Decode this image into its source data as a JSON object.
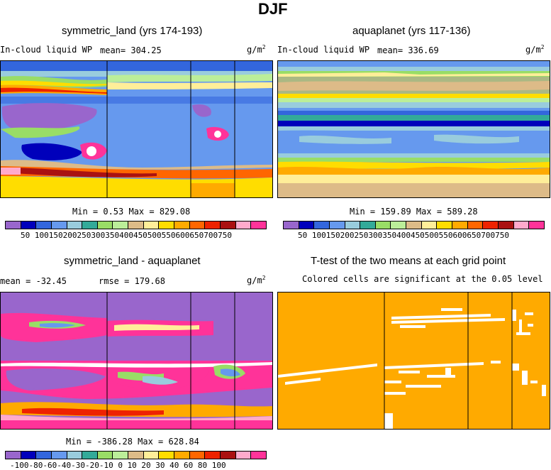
{
  "figure_title": "DJF",
  "colors": {
    "abs_levels": [
      "#9966cc",
      "#0000bb",
      "#3366dd",
      "#6699ee",
      "#99ccdd",
      "#33aa99",
      "#99dd66",
      "#bbee99",
      "#ddbb88",
      "#ffee99",
      "#ffdd00",
      "#ffaa00",
      "#ff6600",
      "#ee2200",
      "#aa1111",
      "#ffaacc",
      "#ff3399"
    ],
    "diff_levels": [
      "#9966cc",
      "#0000bb",
      "#3366dd",
      "#6699ee",
      "#99ccdd",
      "#33aa99",
      "#99dd66",
      "#bbee99",
      "#ddbb88",
      "#ffee99",
      "#ffdd00",
      "#ffaa00",
      "#ff6600",
      "#ee2200",
      "#aa1111",
      "#ffaacc",
      "#ff3399"
    ],
    "significant": "#ffaa00",
    "not_significant": "#ffffff"
  },
  "panels": {
    "p1": {
      "title": "symmetric_land (yrs 174-193)",
      "varname": "In-cloud liquid WP",
      "mean_text": "mean= 304.25",
      "unit": "g/m",
      "unit_sup": "2",
      "minmax_text": "Min =    0.53 Max = 829.08",
      "cbar_labels": "50 100150200250300350400450500550600650700750"
    },
    "p2": {
      "title": "aquaplanet (yrs 117-136)",
      "varname": "In-cloud liquid WP",
      "mean_text": "mean= 336.69",
      "unit": "g/m",
      "unit_sup": "2",
      "minmax_text": "Min = 159.89 Max = 589.28",
      "cbar_labels": "50 100150200250300350400450500550600650700750"
    },
    "p3": {
      "title": "symmetric_land - aquaplanet",
      "mean_text": "mean = -32.45",
      "rmse_text": "rmse = 179.68",
      "unit": "g/m",
      "unit_sup": "2",
      "minmax_text": "Min = -386.28 Max = 628.84",
      "cbar_labels": "-100-80-60-40-30-20-10  0  10  20  30  40  60  80 100"
    },
    "p4": {
      "title": "T-test of the two means at each grid point",
      "subtitle": "Colored cells are significant at the 0.05 level"
    }
  },
  "chart_data": [
    {
      "type": "heatmap",
      "title": "symmetric_land (yrs 174-193)",
      "variable": "In-cloud liquid WP",
      "units": "g/m^2",
      "mean": 304.25,
      "min": 0.53,
      "max": 829.08,
      "contour_levels": [
        50,
        100,
        150,
        200,
        250,
        300,
        350,
        400,
        450,
        500,
        550,
        600,
        650,
        700,
        750
      ],
      "continent_outlines": true
    },
    {
      "type": "heatmap",
      "title": "aquaplanet (yrs 117-136)",
      "variable": "In-cloud liquid WP",
      "units": "g/m^2",
      "mean": 336.69,
      "min": 159.89,
      "max": 589.28,
      "contour_levels": [
        50,
        100,
        150,
        200,
        250,
        300,
        350,
        400,
        450,
        500,
        550,
        600,
        650,
        700,
        750
      ]
    },
    {
      "type": "heatmap",
      "title": "symmetric_land - aquaplanet",
      "units": "g/m^2",
      "mean": -32.45,
      "rmse": 179.68,
      "min": -386.28,
      "max": 628.84,
      "contour_levels": [
        -100,
        -80,
        -60,
        -40,
        -30,
        -20,
        -10,
        0,
        10,
        20,
        30,
        40,
        60,
        80,
        100
      ]
    },
    {
      "type": "heatmap",
      "title": "T-test of the two means at each grid point",
      "subtitle": "Colored cells are significant at the 0.05 level",
      "significance_level": 0.05
    }
  ]
}
